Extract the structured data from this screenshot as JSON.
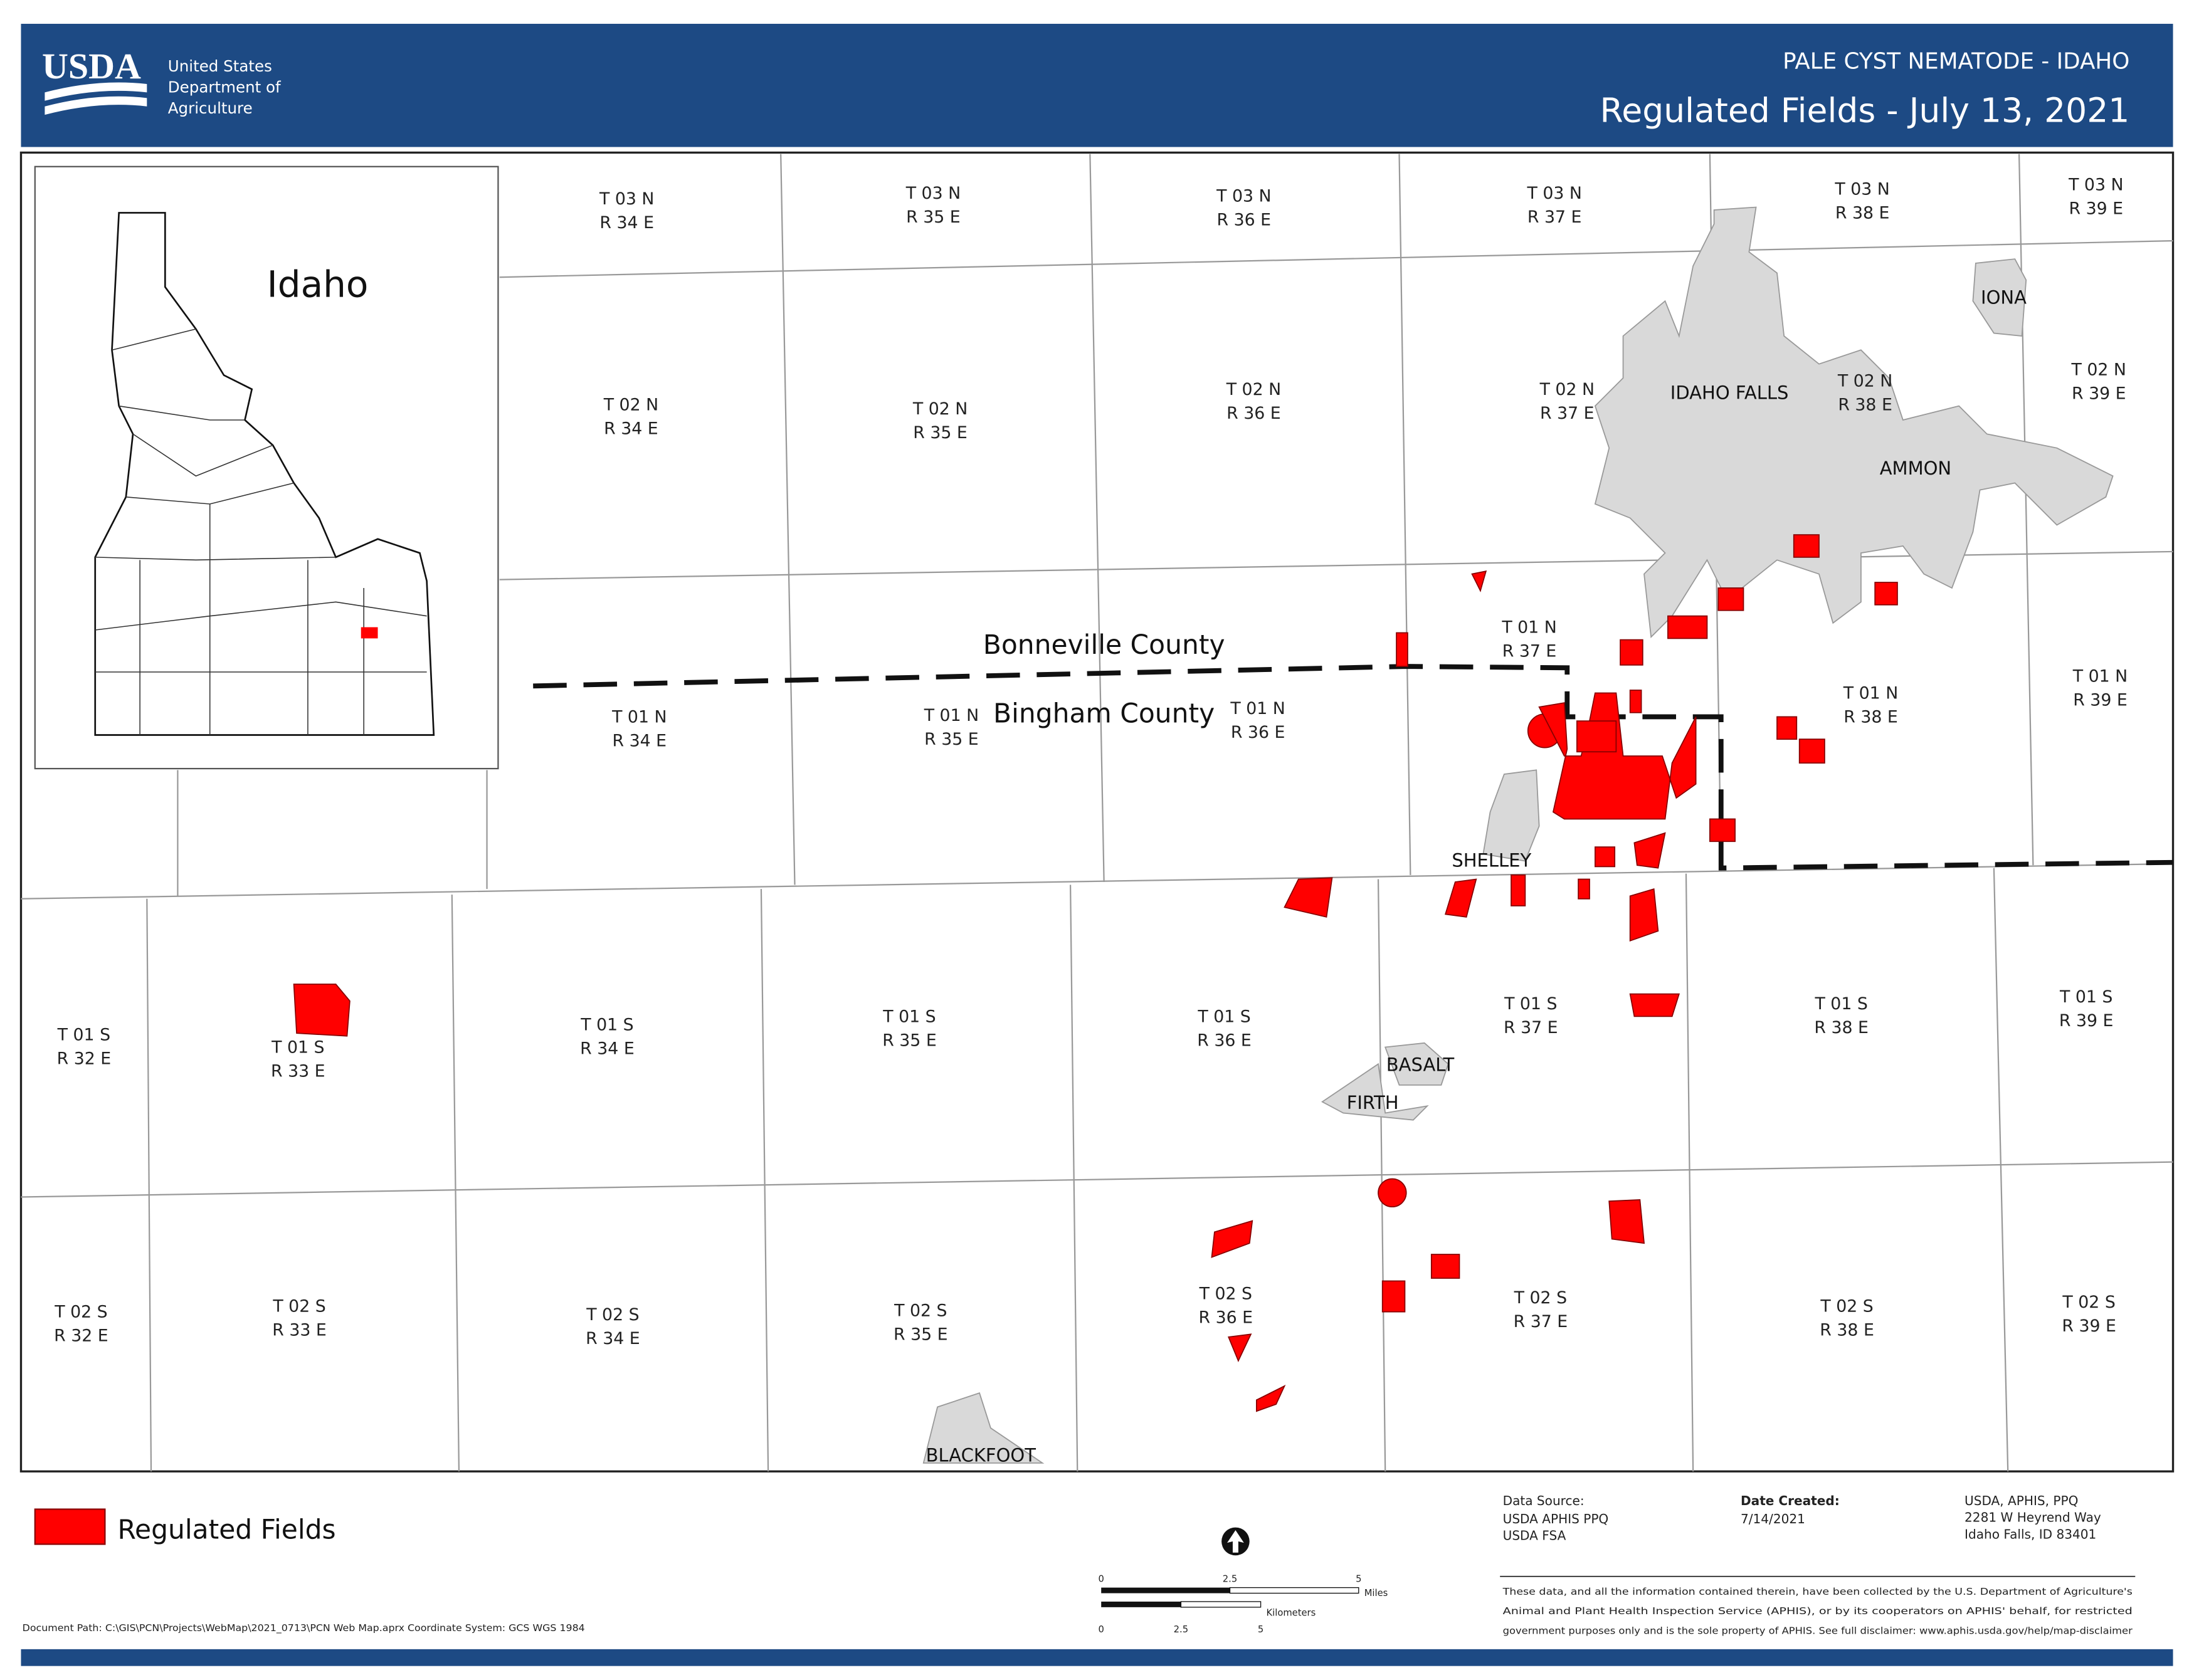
{
  "header": {
    "agency_abbr": "USDA",
    "agency_name": [
      "United States",
      "Department of",
      "Agriculture"
    ],
    "title": "PALE CYST NEMATODE - IDAHO",
    "subtitle": "Regulated Fields - July 13, 2021"
  },
  "inset": {
    "label": "Idaho"
  },
  "townships": [
    {
      "t": "T 03 N",
      "r": "R 34 E"
    },
    {
      "t": "T 03 N",
      "r": "R 35 E"
    },
    {
      "t": "T 03 N",
      "r": "R 36 E"
    },
    {
      "t": "T 03 N",
      "r": "R 37 E"
    },
    {
      "t": "T 03 N",
      "r": "R 38 E"
    },
    {
      "t": "T 03 N",
      "r": "R 39 E"
    },
    {
      "t": "T 02 N",
      "r": "R 34 E"
    },
    {
      "t": "T 02 N",
      "r": "R 35 E"
    },
    {
      "t": "T 02 N",
      "r": "R 36 E"
    },
    {
      "t": "T 02 N",
      "r": "R 37 E"
    },
    {
      "t": "T 02 N",
      "r": "R 38 E"
    },
    {
      "t": "T 02 N",
      "r": "R 39 E"
    },
    {
      "t": "T 01 N",
      "r": "R 34 E"
    },
    {
      "t": "T 01 N",
      "r": "R 35 E"
    },
    {
      "t": "T 01 N",
      "r": "R 36 E"
    },
    {
      "t": "T 01 N",
      "r": "R 37 E"
    },
    {
      "t": "T 01 N",
      "r": "R 38 E"
    },
    {
      "t": "T 01 N",
      "r": "R 39 E"
    },
    {
      "t": "T 01 S",
      "r": "R 32 E"
    },
    {
      "t": "T 01 S",
      "r": "R 33 E"
    },
    {
      "t": "T 01 S",
      "r": "R 34 E"
    },
    {
      "t": "T 01 S",
      "r": "R 35 E"
    },
    {
      "t": "T 01 S",
      "r": "R 36 E"
    },
    {
      "t": "T 01 S",
      "r": "R 37 E"
    },
    {
      "t": "T 01 S",
      "r": "R 38 E"
    },
    {
      "t": "T 01 S",
      "r": "R 39 E"
    },
    {
      "t": "T 02 S",
      "r": "R 32 E"
    },
    {
      "t": "T 02 S",
      "r": "R 33 E"
    },
    {
      "t": "T 02 S",
      "r": "R 34 E"
    },
    {
      "t": "T 02 S",
      "r": "R 35 E"
    },
    {
      "t": "T 02 S",
      "r": "R 36 E"
    },
    {
      "t": "T 02 S",
      "r": "R 37 E"
    },
    {
      "t": "T 02 S",
      "r": "R 38 E"
    },
    {
      "t": "T 02 S",
      "r": "R 39 E"
    }
  ],
  "counties": [
    "Bonneville County",
    "Bingham County"
  ],
  "cities": [
    "IDAHO FALLS",
    "IONA",
    "AMMON",
    "SHELLEY",
    "BASALT",
    "FIRTH",
    "BLACKFOOT"
  ],
  "legend": {
    "label": "Regulated Fields"
  },
  "scale": {
    "miles_ticks": [
      "0",
      "2.5",
      "5"
    ],
    "miles_unit": "Miles",
    "km_ticks": [
      "0",
      "2.5",
      "5"
    ],
    "km_unit": "Kilometers"
  },
  "footer": {
    "source_title": "Data Source:",
    "sources": [
      "USDA APHIS PPQ",
      "USDA FSA"
    ],
    "date_title": "Date Created:",
    "date": "7/14/2021",
    "address": [
      "USDA, APHIS, PPQ",
      "2281 W Heyrend Way",
      "Idaho Falls, ID 83401"
    ],
    "disclaimer": [
      "These data, and all the information contained therein, have been collected by the U.S. Department of Agriculture's",
      "Animal and Plant Health Inspection Service (APHIS), or by its cooperators on APHIS' behalf, for restricted",
      "government purposes only and is the sole property of APHIS. See full disclaimer: www.aphis.usda.gov/help/map-disclaimer"
    ],
    "document_path": "Document Path: C:\\GIS\\PCN\\Projects\\WebMap\\2021_0713\\PCN Web Map.aprx  Coordinate System: GCS WGS 1984"
  }
}
